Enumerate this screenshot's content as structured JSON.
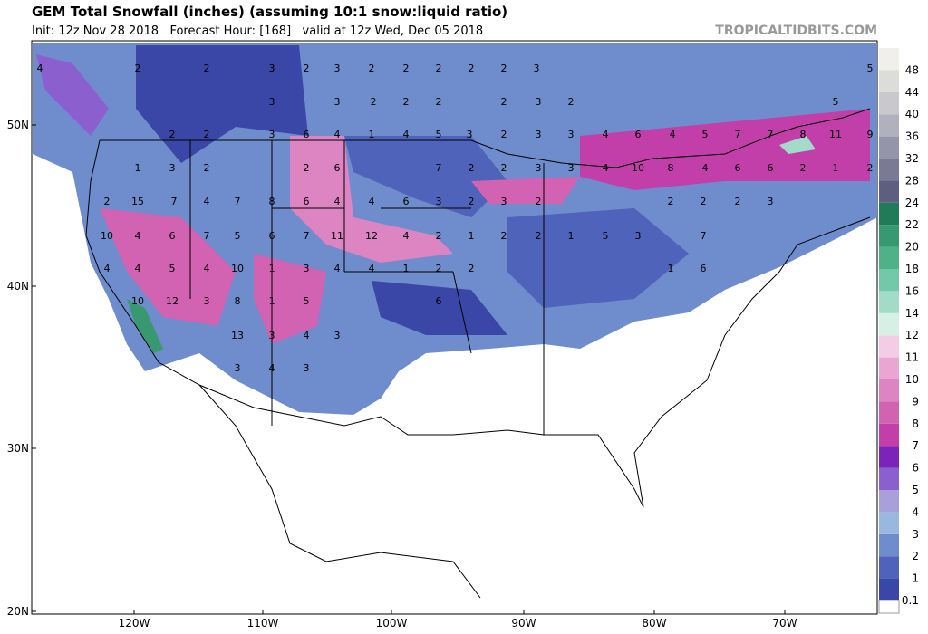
{
  "header": {
    "title": "GEM Total Snowfall (inches) (assuming 10:1 snow:liquid ratio)",
    "subtitle": "Init: 12z Nov 28 2018   Forecast Hour: [168]   valid at 12z Wed, Dec 05 2018",
    "source": "TROPICALTIDBITS.COM"
  },
  "axes": {
    "lat_labels": [
      "50N",
      "40N",
      "30N",
      "20N"
    ],
    "lon_labels": [
      "120W",
      "110W",
      "100W",
      "90W",
      "80W",
      "70W"
    ]
  },
  "colorbar": {
    "levels": [
      "0.1",
      "1",
      "2",
      "3",
      "4",
      "5",
      "6",
      "7",
      "8",
      "9",
      "10",
      "11",
      "12",
      "14",
      "16",
      "18",
      "20",
      "22",
      "24",
      "28",
      "32",
      "36",
      "40",
      "44",
      "48"
    ],
    "colors": [
      "#3b47a6",
      "#4f63bb",
      "#6f8ccd",
      "#98b8df",
      "#a99fdb",
      "#8c5fcf",
      "#7a24ba",
      "#c23fa9",
      "#d262b2",
      "#dd84c2",
      "#e9a6d3",
      "#f2cde5",
      "#d6f0e6",
      "#a2dcc9",
      "#72c9a9",
      "#50b189",
      "#389870",
      "#217a58",
      "#5e5e80",
      "#7a7a94",
      "#9595a9",
      "#b1b1bd",
      "#c9c9cd",
      "#dcdcd8",
      "#f0f0e8"
    ]
  },
  "map_labels": [
    4,
    2,
    2,
    3,
    2,
    3,
    2,
    2,
    2,
    2,
    2,
    3,
    5,
    3,
    3,
    2,
    2,
    2,
    2,
    3,
    2,
    5,
    2,
    2,
    3,
    6,
    4,
    1,
    4,
    5,
    3,
    2,
    3,
    3,
    4,
    6,
    4,
    5,
    7,
    7,
    8,
    11,
    9,
    1,
    3,
    2,
    2,
    6,
    7,
    2,
    2,
    3,
    3,
    4,
    10,
    8,
    4,
    6,
    6,
    2,
    1,
    2,
    4,
    7,
    8,
    6,
    4,
    4,
    6,
    3,
    2,
    3,
    2,
    2,
    2,
    2,
    3,
    2,
    15,
    7,
    10,
    4,
    6,
    7,
    5,
    6,
    7,
    11,
    12,
    4,
    2,
    1,
    2,
    2,
    1,
    5,
    3,
    7,
    4,
    4,
    5,
    4,
    10,
    1,
    3,
    4,
    4,
    1,
    2,
    2,
    1,
    6,
    10,
    12,
    3,
    8,
    1,
    5,
    6,
    13,
    3,
    4,
    3,
    3,
    4,
    3
  ]
}
